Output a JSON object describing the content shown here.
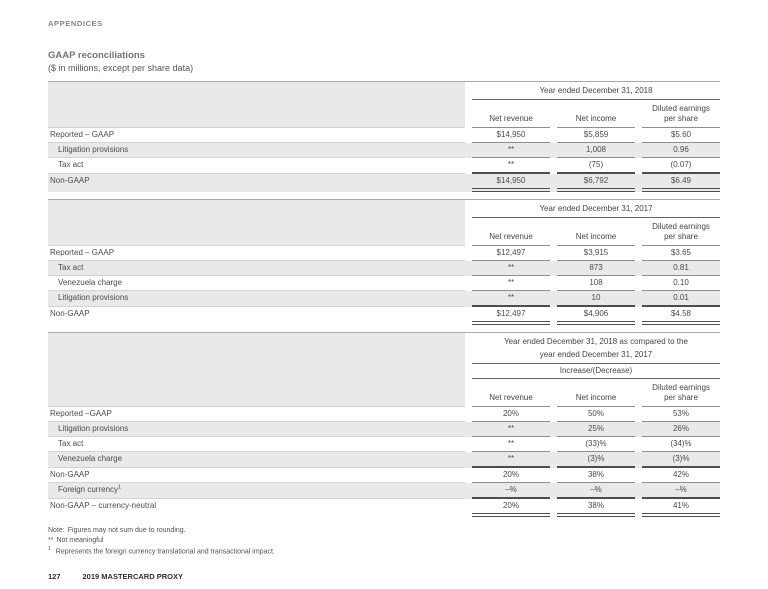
{
  "page": {
    "eyebrow": "APPENDICES",
    "title": "GAAP reconciliations",
    "subtitle": "($ in millions, except per share data)",
    "footer": {
      "page_number": "127",
      "brand": "2019 MASTERCARD PROXY"
    }
  },
  "colors": {
    "row_shade": "#e9e9e7",
    "rule_light": "#d3d3d1",
    "rule_dark": "#8d8e90",
    "rule_heavy": "#4c4d50",
    "text": "#4a4b4e"
  },
  "tables": [
    {
      "period_header": "Year ended December 31, 2018",
      "columns": [
        "Net revenue",
        "Net income",
        "Diluted earnings\nper share"
      ],
      "rows": [
        {
          "label": "Reported – GAAP",
          "indent": false,
          "shaded": false,
          "border": "normal",
          "values": [
            "$14,950",
            "$5,859",
            "$5.60"
          ]
        },
        {
          "label": "Litigation provisions",
          "indent": true,
          "shaded": true,
          "border": "normal",
          "values": [
            "**",
            "1,008",
            "0.96"
          ]
        },
        {
          "label": "Tax act",
          "indent": true,
          "shaded": false,
          "border": "thick",
          "values": [
            "**",
            "(75)",
            "(0.07)"
          ]
        },
        {
          "label": "Non-GAAP",
          "indent": false,
          "shaded": true,
          "border": "double",
          "values": [
            "$14,950",
            "$6,792",
            "$6.49"
          ]
        }
      ]
    },
    {
      "period_header": "Year ended December 31, 2017",
      "columns": [
        "Net revenue",
        "Net income",
        "Diluted earnings\nper share"
      ],
      "rows": [
        {
          "label": "Reported – GAAP",
          "indent": false,
          "shaded": false,
          "border": "normal",
          "values": [
            "$12,497",
            "$3,915",
            "$3.65"
          ]
        },
        {
          "label": "Tax act",
          "indent": true,
          "shaded": true,
          "border": "normal",
          "values": [
            "**",
            "873",
            "0.81"
          ]
        },
        {
          "label": "Venezuela charge",
          "indent": true,
          "shaded": false,
          "border": "normal",
          "values": [
            "**",
            "108",
            "0.10"
          ]
        },
        {
          "label": "Litigation provisions",
          "indent": true,
          "shaded": true,
          "border": "thick",
          "values": [
            "**",
            "10",
            "0.01"
          ]
        },
        {
          "label": "Non-GAAP",
          "indent": false,
          "shaded": false,
          "border": "double",
          "values": [
            "$12,497",
            "$4,906",
            "$4.58"
          ]
        }
      ]
    },
    {
      "period_header": "Year ended December 31, 2018 as compared to the\nyear ended December 31, 2017",
      "sub_header": "Increase/(Decrease)",
      "columns": [
        "Net revenue",
        "Net income",
        "Diluted earnings\nper share"
      ],
      "rows": [
        {
          "label": "Reported –GAAP",
          "indent": false,
          "shaded": false,
          "border": "normal",
          "values": [
            "20%",
            "50%",
            "53%"
          ]
        },
        {
          "label": "Litigation provisions",
          "indent": true,
          "shaded": true,
          "border": "normal",
          "values": [
            "**",
            "25%",
            "26%"
          ]
        },
        {
          "label": "Tax act",
          "indent": true,
          "shaded": false,
          "border": "normal",
          "values": [
            "**",
            "(33)%",
            "(34)%"
          ]
        },
        {
          "label": "Venezuela charge",
          "indent": true,
          "shaded": true,
          "border": "thick",
          "values": [
            "**",
            "(3)%",
            "(3)%"
          ]
        },
        {
          "label": "Non-GAAP",
          "indent": false,
          "shaded": false,
          "border": "normal",
          "values": [
            "20%",
            "38%",
            "42%"
          ]
        },
        {
          "label": "Foreign currency",
          "label_sup": "1",
          "indent": true,
          "shaded": true,
          "border": "thick",
          "values": [
            "–%",
            "–%",
            "–%"
          ]
        },
        {
          "label": "Non-GAAP – currency-neutral",
          "indent": false,
          "shaded": false,
          "border": "double",
          "values": [
            "20%",
            "38%",
            "41%"
          ]
        }
      ]
    }
  ],
  "notes": [
    {
      "marker": "Note:",
      "sup": false,
      "text": "Figures may not sum due to rounding."
    },
    {
      "marker": "**",
      "sup": false,
      "text": "Not meaningful"
    },
    {
      "marker": "1",
      "sup": true,
      "text": "Represents the foreign currency translational and transactional impact."
    }
  ]
}
